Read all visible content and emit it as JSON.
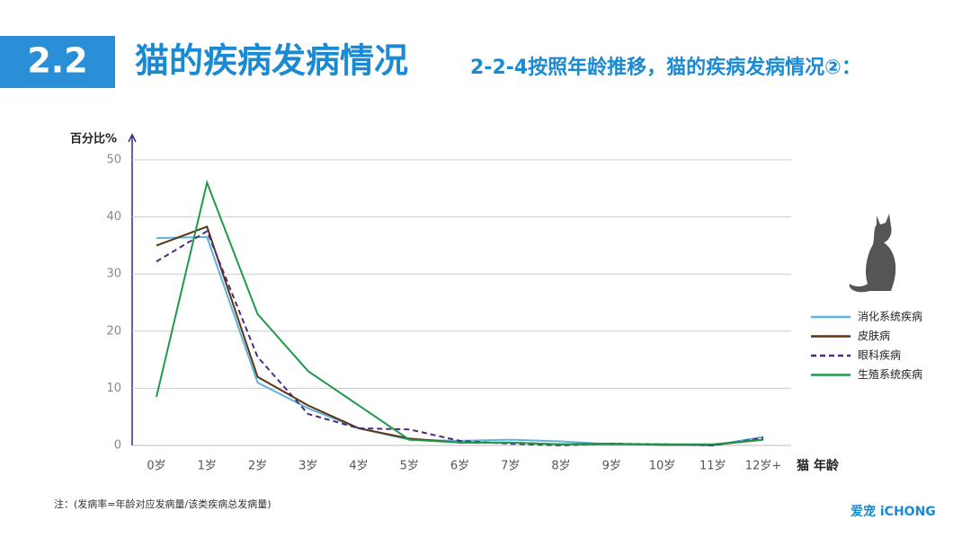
{
  "header": {
    "section": "2.2",
    "title": "猫的疾病发病情况",
    "subtitle": "2-2-4按照年龄推移，猫的疾病发病情况②："
  },
  "chart_data": {
    "type": "line",
    "y_label": "百分比%",
    "x_label": "猫 年龄",
    "categories": [
      "0岁",
      "1岁",
      "2岁",
      "3岁",
      "4岁",
      "5岁",
      "6岁",
      "7岁",
      "8岁",
      "9岁",
      "10岁",
      "11岁",
      "12岁+"
    ],
    "ylim": [
      0,
      50
    ],
    "yticks": [
      0,
      10,
      20,
      30,
      40,
      50
    ],
    "grid": true,
    "series": [
      {
        "name": "消化系统疾病",
        "color": "#5fb3dc",
        "dashed": false,
        "values": [
          36.3,
          36.5,
          11,
          6.5,
          3,
          1,
          0.8,
          1,
          0.7,
          0.2,
          0.2,
          0,
          1.5
        ]
      },
      {
        "name": "皮肤病",
        "color": "#5a3512",
        "dashed": false,
        "values": [
          35,
          38.3,
          12,
          7,
          3,
          1.2,
          0.5,
          0.5,
          0.2,
          0.3,
          0.1,
          0.1,
          1
        ]
      },
      {
        "name": "眼科疾病",
        "color": "#4b2c7e",
        "dashed": true,
        "values": [
          32.2,
          37.5,
          15.5,
          5.5,
          3,
          2.8,
          0.8,
          0.3,
          0,
          0.3,
          0.2,
          0,
          1.3
        ]
      },
      {
        "name": "生殖系统疾病",
        "color": "#1f9a4a",
        "dashed": false,
        "values": [
          8.5,
          46,
          23,
          13,
          7,
          1,
          0.5,
          0.5,
          0.2,
          0.2,
          0.2,
          0.2,
          1
        ]
      }
    ]
  },
  "note": "注：(发病率=年龄对应发病量/该类疾病总发病量)",
  "logo": "爱宠 iCHONG"
}
